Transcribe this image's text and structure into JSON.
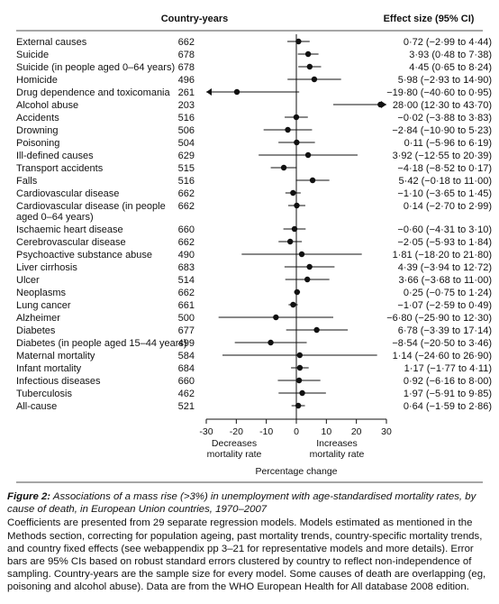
{
  "panel": {
    "header_country_years": "Country-years",
    "header_effect_size": "Effect size (95% CI)"
  },
  "chart_data": {
    "type": "forest",
    "title": "",
    "xlabel": "Percentage change",
    "x_ticks": [
      -30,
      -20,
      -10,
      0,
      10,
      20,
      30
    ],
    "xlim": [
      -30,
      30
    ],
    "reference_line": 0,
    "annotations": {
      "left": [
        "Decreases",
        "mortality rate"
      ],
      "right": [
        "Increases",
        "mortality rate"
      ]
    },
    "rows": [
      {
        "label": "External causes",
        "country_years": "662",
        "effect_text": "0·72 (−2·99 to 4·44)",
        "estimate": 0.72,
        "lower": -2.99,
        "upper": 4.44
      },
      {
        "label": "Suicide",
        "country_years": "678",
        "effect_text": "3·93 (0·48 to 7·38)",
        "estimate": 3.93,
        "lower": 0.48,
        "upper": 7.38
      },
      {
        "label": "Suicide (in people aged 0–64 years)",
        "country_years": "678",
        "effect_text": "4·45 (0·65 to 8·24)",
        "estimate": 4.45,
        "lower": 0.65,
        "upper": 8.24
      },
      {
        "label": "Homicide",
        "country_years": "496",
        "effect_text": "5·98 (−2·93 to 14·90)",
        "estimate": 5.98,
        "lower": -2.93,
        "upper": 14.9
      },
      {
        "label": "Drug dependence and toxicomania",
        "country_years": "261",
        "effect_text": "−19·80 (−40·60 to 0·95)",
        "estimate": -19.8,
        "lower": -40.6,
        "upper": 0.95
      },
      {
        "label": "Alcohol abuse",
        "country_years": "203",
        "effect_text": "28·00 (12·30 to 43·70)",
        "estimate": 28.0,
        "lower": 12.3,
        "upper": 43.7
      },
      {
        "label": "Accidents",
        "country_years": "516",
        "effect_text": "−0·02 (−3·88 to 3·83)",
        "estimate": -0.02,
        "lower": -3.88,
        "upper": 3.83
      },
      {
        "label": "Drowning",
        "country_years": "506",
        "effect_text": "−2·84 (−10·90 to 5·23)",
        "estimate": -2.84,
        "lower": -10.9,
        "upper": 5.23
      },
      {
        "label": "Poisoning",
        "country_years": "504",
        "effect_text": "0·11 (−5·96 to 6·19)",
        "estimate": 0.11,
        "lower": -5.96,
        "upper": 6.19
      },
      {
        "label": "Ill-defined causes",
        "country_years": "629",
        "effect_text": "3·92 (−12·55 to 20·39)",
        "estimate": 3.92,
        "lower": -12.55,
        "upper": 20.39
      },
      {
        "label": "Transport accidents",
        "country_years": "515",
        "effect_text": "−4·18 (−8·52 to 0·17)",
        "estimate": -4.18,
        "lower": -8.52,
        "upper": 0.17
      },
      {
        "label": "Falls",
        "country_years": "516",
        "effect_text": "5·42 (−0·18 to 11·00)",
        "estimate": 5.42,
        "lower": -0.18,
        "upper": 11.0
      },
      {
        "label": "Cardiovascular disease",
        "country_years": "662",
        "effect_text": "−1·10 (−3·65 to 1·45)",
        "estimate": -1.1,
        "lower": -3.65,
        "upper": 1.45
      },
      {
        "label": "Cardiovascular disease (in people",
        "label_line2": "aged 0–64 years)",
        "country_years": "662",
        "effect_text": "0·14 (−2·70 to 2·99)",
        "estimate": 0.14,
        "lower": -2.7,
        "upper": 2.99
      },
      {
        "label": "Ischaemic heart disease",
        "country_years": "660",
        "effect_text": "−0·60 (−4·31 to 3·10)",
        "estimate": -0.6,
        "lower": -4.31,
        "upper": 3.1
      },
      {
        "label": "Cerebrovascular disease",
        "country_years": "662",
        "effect_text": "−2·05 (−5·93 to 1·84)",
        "estimate": -2.05,
        "lower": -5.93,
        "upper": 1.84
      },
      {
        "label": "Psychoactive substance abuse",
        "country_years": "490",
        "effect_text": "1·81 (−18·20 to 21·80)",
        "estimate": 1.81,
        "lower": -18.2,
        "upper": 21.8
      },
      {
        "label": "Liver cirrhosis",
        "country_years": "683",
        "effect_text": "4·39 (−3·94 to 12·72)",
        "estimate": 4.39,
        "lower": -3.94,
        "upper": 12.72
      },
      {
        "label": "Ulcer",
        "country_years": "514",
        "effect_text": "3·66 (−3·68 to 11·00)",
        "estimate": 3.66,
        "lower": -3.68,
        "upper": 11.0
      },
      {
        "label": "Neoplasms",
        "country_years": "662",
        "effect_text": "0·25 (−0·75 to 1·24)",
        "estimate": 0.25,
        "lower": -0.75,
        "upper": 1.24
      },
      {
        "label": "Lung cancer",
        "country_years": "661",
        "effect_text": "−1·07 (−2·59 to 0·49)",
        "estimate": -1.07,
        "lower": -2.59,
        "upper": 0.49
      },
      {
        "label": "Alzheimer",
        "country_years": "500",
        "effect_text": "−6·80 (−25·90 to 12·30)",
        "estimate": -6.8,
        "lower": -25.9,
        "upper": 12.3
      },
      {
        "label": "Diabetes",
        "country_years": "677",
        "effect_text": "6·78 (−3·39 to 17·14)",
        "estimate": 6.78,
        "lower": -3.39,
        "upper": 17.14
      },
      {
        "label": "Diabetes (in people aged 15–44 years)",
        "country_years": "499",
        "effect_text": "−8·54 (−20·50 to 3·46)",
        "estimate": -8.54,
        "lower": -20.5,
        "upper": 3.46
      },
      {
        "label": "Maternal mortality",
        "country_years": "584",
        "effect_text": "1·14 (−24·60 to 26·90)",
        "estimate": 1.14,
        "lower": -24.6,
        "upper": 26.9
      },
      {
        "label": "Infant mortality",
        "country_years": "684",
        "effect_text": "1·17 (−1·77 to 4·11)",
        "estimate": 1.17,
        "lower": -1.77,
        "upper": 4.11
      },
      {
        "label": "Infectious diseases",
        "country_years": "660",
        "effect_text": "0·92 (−6·16 to 8·00)",
        "estimate": 0.92,
        "lower": -6.16,
        "upper": 8.0
      },
      {
        "label": "Tuberculosis",
        "country_years": "462",
        "effect_text": "1·97 (−5·91 to 9·85)",
        "estimate": 1.97,
        "lower": -5.91,
        "upper": 9.85
      },
      {
        "label": "All-cause",
        "country_years": "521",
        "effect_text": "0·64 (−1·59 to 2·86)",
        "estimate": 0.64,
        "lower": -1.59,
        "upper": 2.86
      }
    ]
  },
  "caption": {
    "title_label": "Figure 2:",
    "title_text": "Associations of a mass rise (>3%) in unemployment with age-standardised mortality rates, by cause of death, in European Union countries, 1970–2007",
    "body": "Coefficients are presented from 29 separate regression models. Models estimated as mentioned in the Methods section, correcting for population ageing, past mortality trends, country-specific mortality trends, and country fixed effects (see webappendix pp 3–21 for representative models and more details). Error bars are 95% CIs based on robust standard errors clustered by country to reflect non-independence of sampling. Country-years are the sample size for every model. Some causes of death are overlapping (eg, poisoning and alcohol abuse). Data are from the WHO European Health for All database 2008 edition."
  },
  "colors": {
    "panel_background": "#ffffff",
    "marker": "#111111",
    "line": "#111111",
    "divider": "#111111",
    "page_background": "#ffffff"
  }
}
